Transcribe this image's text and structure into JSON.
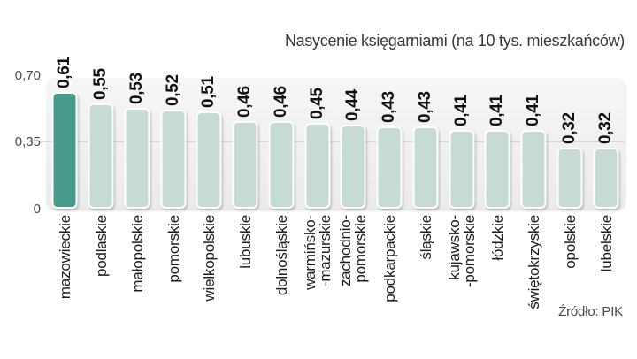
{
  "title": "Nasycenie księgarniami (na 10 tys. mieszkańców)",
  "source": "Źródło: PIK",
  "chart_data": {
    "type": "bar",
    "title": "Nasycenie księgarniami (na 10 tys. mieszkańców)",
    "source": "Źródło: PIK",
    "xlabel": "",
    "ylabel": "",
    "ylim": [
      0,
      0.7
    ],
    "grid": "single horizontal gridline at 0.35",
    "legend": "none",
    "bar_label_rotation": -90,
    "category_rotation": -90,
    "highlight_index": 0,
    "categories": [
      "mazowieckie",
      "podlaskie",
      "małopolskie",
      "pomorskie",
      "wielkopolskie",
      "lubuskie",
      "dolnośląskie",
      "warmińsko-\n-mazurskie",
      "zachodnio-\npomorskie",
      "podkarpackie",
      "śląskie",
      "kujawsko-\n-pomorskie",
      "łódzkie",
      "świętokrzyskie",
      "opolskie",
      "lubelskie"
    ],
    "values": [
      0.61,
      0.55,
      0.53,
      0.52,
      0.51,
      0.46,
      0.46,
      0.45,
      0.44,
      0.43,
      0.43,
      0.41,
      0.41,
      0.41,
      0.32,
      0.32
    ],
    "value_labels": [
      "0,61",
      "0,55",
      "0,53",
      "0,52",
      "0,51",
      "0,46",
      "0,46",
      "0,45",
      "0,44",
      "0,43",
      "0,43",
      "0,41",
      "0,41",
      "0,41",
      "0,32",
      "0,32"
    ],
    "y_ticks": [
      {
        "label": "0,70",
        "value": 0.7
      },
      {
        "label": "0,35",
        "value": 0.35
      },
      {
        "label": "0",
        "value": 0.0
      }
    ]
  },
  "colors": {
    "highlight_bar": "#489b8c",
    "bar": "#c6dcd3",
    "bar_border": "#ffffff",
    "panel_top": "#f6f6f5",
    "panel_bottom": "#ebebea",
    "gridline": "#d7d7d6",
    "title_text": "#383838",
    "axis_text": "#4a4a4a",
    "category_text": "#1d1d1d",
    "value_text": "#121212"
  }
}
